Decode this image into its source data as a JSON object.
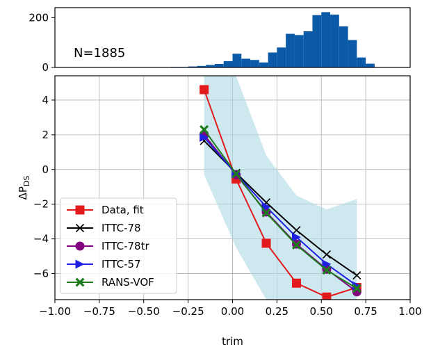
{
  "chart_data": [
    {
      "type": "bar",
      "annotation": "N=1885",
      "bar_color": "#0a5aa8",
      "ylim": [
        0,
        240
      ],
      "yticks": [
        0,
        200
      ],
      "xlim": [
        -1.0,
        1.0
      ],
      "bins": [
        {
          "x": -0.475,
          "y": 1
        },
        {
          "x": -0.425,
          "y": 1
        },
        {
          "x": -0.375,
          "y": 1
        },
        {
          "x": -0.325,
          "y": 2
        },
        {
          "x": -0.275,
          "y": 2
        },
        {
          "x": -0.225,
          "y": 4
        },
        {
          "x": -0.175,
          "y": 6
        },
        {
          "x": -0.125,
          "y": 10
        },
        {
          "x": -0.075,
          "y": 14
        },
        {
          "x": -0.025,
          "y": 25
        },
        {
          "x": 0.025,
          "y": 55
        },
        {
          "x": 0.075,
          "y": 35
        },
        {
          "x": 0.125,
          "y": 30
        },
        {
          "x": 0.175,
          "y": 20
        },
        {
          "x": 0.225,
          "y": 60
        },
        {
          "x": 0.275,
          "y": 80
        },
        {
          "x": 0.325,
          "y": 135
        },
        {
          "x": 0.375,
          "y": 130
        },
        {
          "x": 0.425,
          "y": 145
        },
        {
          "x": 0.475,
          "y": 210
        },
        {
          "x": 0.525,
          "y": 222
        },
        {
          "x": 0.575,
          "y": 212
        },
        {
          "x": 0.625,
          "y": 165
        },
        {
          "x": 0.675,
          "y": 110
        },
        {
          "x": 0.725,
          "y": 40
        },
        {
          "x": 0.775,
          "y": 15
        }
      ]
    },
    {
      "type": "line",
      "xlabel": "trim",
      "ylabel": "ΔP",
      "ylabel_sub": "DS",
      "xlim": [
        -1.0,
        1.0
      ],
      "ylim": [
        -7.5,
        5.4
      ],
      "xticks": [
        "−1.00",
        "−0.75",
        "−0.50",
        "−0.25",
        "0.00",
        "0.25",
        "0.50",
        "0.75",
        "1.00"
      ],
      "xtick_values": [
        -1.0,
        -0.75,
        -0.5,
        -0.25,
        0.0,
        0.25,
        0.5,
        0.75,
        1.0
      ],
      "yticks": [
        "−6",
        "−4",
        "−2",
        "0",
        "2",
        "4"
      ],
      "ytick_values": [
        -6,
        -4,
        -2,
        0,
        2,
        4
      ],
      "grid": true,
      "legend_position": "lower-left",
      "band": {
        "color": "#add8e6",
        "x": [
          -0.16,
          0.02,
          0.19,
          0.36,
          0.53,
          0.7
        ],
        "upper": [
          5.4,
          5.4,
          0.8,
          -1.5,
          -2.3,
          -1.7
        ],
        "lower": [
          -0.3,
          -4.5,
          -7.5,
          -7.5,
          -7.5,
          -7.5
        ]
      },
      "series": [
        {
          "name": "Data, fit",
          "color": "#e31a1c",
          "marker": "square",
          "x": [
            -0.16,
            0.02,
            0.19,
            0.36,
            0.53,
            0.7
          ],
          "y": [
            4.6,
            -0.55,
            -4.25,
            -6.55,
            -7.35,
            -6.8
          ]
        },
        {
          "name": "ITTC-78",
          "color": "#000000",
          "marker": "x",
          "x": [
            -0.16,
            0.02,
            0.19,
            0.36,
            0.53,
            0.7
          ],
          "y": [
            1.65,
            -0.2,
            -1.9,
            -3.5,
            -4.9,
            -6.1
          ]
        },
        {
          "name": "ITTC-78tr",
          "color": "#800080",
          "marker": "circle",
          "x": [
            -0.16,
            0.02,
            0.19,
            0.36,
            0.53,
            0.7
          ],
          "y": [
            2.0,
            -0.3,
            -2.45,
            -4.3,
            -5.75,
            -7.05
          ]
        },
        {
          "name": "ITTC-57",
          "color": "#1f1fe0",
          "marker": "triangle-right",
          "x": [
            -0.16,
            0.02,
            0.19,
            0.36,
            0.53,
            0.7
          ],
          "y": [
            1.85,
            -0.25,
            -2.15,
            -3.9,
            -5.45,
            -6.7
          ]
        },
        {
          "name": "RANS-VOF",
          "color": "#1e7b1e",
          "marker": "x-filled",
          "x": [
            -0.16,
            0.02,
            0.19,
            0.36,
            0.53,
            0.7
          ],
          "y": [
            2.3,
            -0.25,
            -2.5,
            -4.35,
            -5.8,
            -6.85
          ]
        }
      ]
    }
  ]
}
